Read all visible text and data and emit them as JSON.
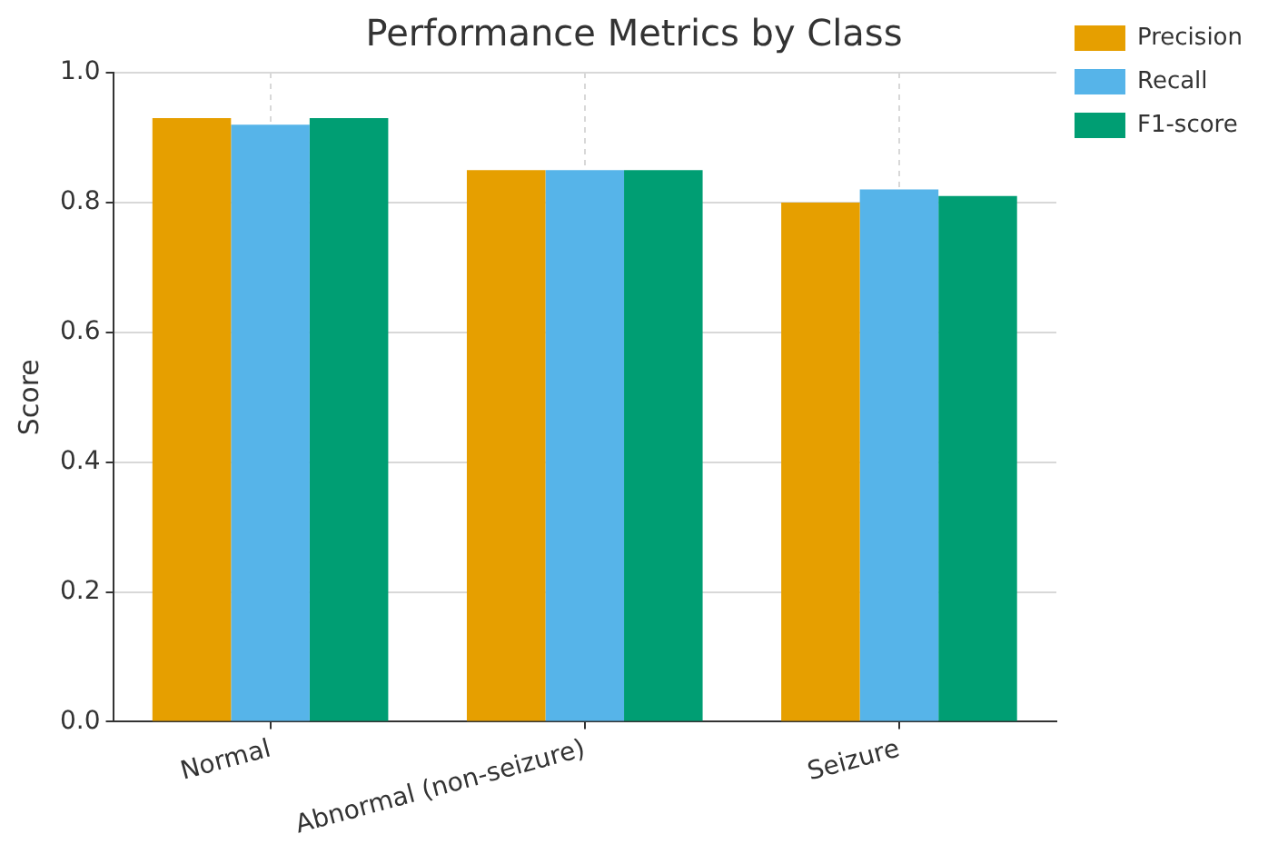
{
  "chart_data": {
    "type": "bar",
    "title": "Performance Metrics by Class",
    "ylabel": "Score",
    "categories": [
      "Normal",
      "Abnormal (non-seizure)",
      "Seizure"
    ],
    "series": [
      {
        "name": "Precision",
        "color": "#e69f00",
        "values": [
          0.93,
          0.85,
          0.8
        ]
      },
      {
        "name": "Recall",
        "color": "#56b4e9",
        "values": [
          0.92,
          0.85,
          0.82
        ]
      },
      {
        "name": "F1-score",
        "color": "#009e73",
        "values": [
          0.93,
          0.85,
          0.81
        ]
      }
    ],
    "ylim": [
      0,
      1
    ],
    "yticks": [
      {
        "value": 0,
        "label": "0.0"
      },
      {
        "value": 0.2,
        "label": "0.2"
      },
      {
        "value": 0.4,
        "label": "0.4"
      },
      {
        "value": 0.6,
        "label": "0.6"
      },
      {
        "value": 0.8,
        "label": "0.8"
      },
      {
        "value": 1,
        "label": "1.0"
      }
    ],
    "grid": true,
    "legend": "top right"
  }
}
